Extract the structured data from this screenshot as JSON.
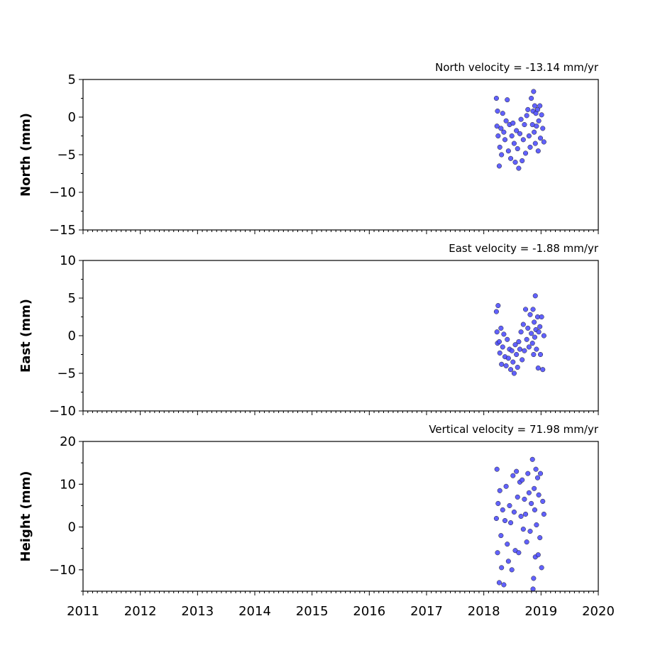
{
  "chart_data": [
    {
      "type": "scatter",
      "annotation": "North velocity = -13.14 mm/yr",
      "y_label": "North (mm)",
      "color": "#5050ff",
      "xlim": [
        2011,
        2020
      ],
      "xticks": [
        2011,
        2012,
        2013,
        2014,
        2015,
        2016,
        2017,
        2018,
        2019,
        2020
      ],
      "ylim": [
        -15,
        5
      ],
      "yticks": [
        {
          "value": -15,
          "label": "−15"
        },
        {
          "value": -10,
          "label": "−10"
        },
        {
          "value": -5,
          "label": "−5"
        },
        0,
        5
      ],
      "x": [
        2018.22,
        2018.23,
        2018.24,
        2018.25,
        2018.27,
        2018.28,
        2018.3,
        2018.31,
        2018.33,
        2018.35,
        2018.37,
        2018.39,
        2018.41,
        2018.43,
        2018.45,
        2018.47,
        2018.49,
        2018.51,
        2018.53,
        2018.55,
        2018.57,
        2018.59,
        2018.61,
        2018.63,
        2018.65,
        2018.67,
        2018.69,
        2018.71,
        2018.73,
        2018.75,
        2018.77,
        2018.79,
        2018.81,
        2018.83,
        2018.85,
        2018.86,
        2018.87,
        2018.88,
        2018.89,
        2018.9,
        2018.91,
        2018.92,
        2018.94,
        2018.95,
        2018.96,
        2018.98,
        2018.99,
        2019.01,
        2019.03,
        2019.05
      ],
      "values": [
        2.5,
        -1.2,
        0.8,
        -2.5,
        -6.5,
        -4.0,
        -1.5,
        -5.0,
        0.5,
        -2.0,
        -3.0,
        -0.5,
        2.3,
        -4.5,
        -1.0,
        -5.5,
        -2.5,
        -0.8,
        -3.5,
        -6.0,
        -1.8,
        -4.2,
        -6.8,
        -2.2,
        -0.3,
        -5.8,
        -3.0,
        -1.0,
        -4.8,
        0.2,
        1.0,
        -2.5,
        -4.0,
        2.5,
        -1.0,
        0.8,
        3.4,
        -2.0,
        1.5,
        -3.5,
        0.5,
        -1.2,
        1.0,
        -4.5,
        -0.5,
        1.5,
        -2.8,
        0.3,
        -1.5,
        -3.3
      ]
    },
    {
      "type": "scatter",
      "annotation": "East velocity = -1.88 mm/yr",
      "y_label": "East (mm)",
      "color": "#5050ff",
      "xlim": [
        2011,
        2020
      ],
      "xticks": [
        2011,
        2012,
        2013,
        2014,
        2015,
        2016,
        2017,
        2018,
        2019,
        2020
      ],
      "ylim": [
        -10,
        10
      ],
      "yticks": [
        {
          "value": -10,
          "label": "−10"
        },
        {
          "value": -5,
          "label": "−5"
        },
        0,
        5,
        10
      ],
      "x": [
        2018.22,
        2018.23,
        2018.24,
        2018.25,
        2018.27,
        2018.28,
        2018.3,
        2018.31,
        2018.33,
        2018.35,
        2018.37,
        2018.39,
        2018.41,
        2018.43,
        2018.45,
        2018.47,
        2018.49,
        2018.51,
        2018.53,
        2018.55,
        2018.57,
        2018.59,
        2018.61,
        2018.63,
        2018.65,
        2018.67,
        2018.69,
        2018.71,
        2018.73,
        2018.75,
        2018.77,
        2018.79,
        2018.81,
        2018.83,
        2018.85,
        2018.86,
        2018.87,
        2018.88,
        2018.89,
        2018.9,
        2018.91,
        2018.92,
        2018.94,
        2018.95,
        2018.96,
        2018.98,
        2018.99,
        2019.01,
        2019.03,
        2019.05
      ],
      "values": [
        3.2,
        0.5,
        -1.0,
        4.0,
        -0.8,
        -2.3,
        1.0,
        -3.8,
        -1.5,
        0.2,
        -2.8,
        -4.0,
        -0.5,
        -3.0,
        -1.8,
        -4.5,
        -2.0,
        -3.5,
        -5.0,
        -1.2,
        -2.5,
        -4.2,
        -0.8,
        -1.8,
        0.5,
        -3.2,
        1.5,
        -2.0,
        3.5,
        -0.5,
        1.0,
        -1.5,
        2.8,
        0.3,
        -1.0,
        3.5,
        -2.5,
        1.8,
        -0.2,
        5.3,
        0.8,
        -1.8,
        2.5,
        -4.3,
        0.5,
        1.2,
        -2.5,
        2.5,
        -4.5,
        0.0
      ]
    },
    {
      "type": "scatter",
      "annotation": "Vertical velocity = 71.98 mm/yr",
      "y_label": "Height (mm)",
      "color": "#5050ff",
      "xlim": [
        2011,
        2020
      ],
      "xticks": [
        2011,
        2012,
        2013,
        2014,
        2015,
        2016,
        2017,
        2018,
        2019,
        2020
      ],
      "x_tick_labels": true,
      "ylim": [
        -15,
        20
      ],
      "yticks": [
        {
          "value": -10,
          "label": "−10"
        },
        0,
        10,
        20
      ],
      "x": [
        2018.22,
        2018.23,
        2018.24,
        2018.25,
        2018.27,
        2018.28,
        2018.3,
        2018.31,
        2018.33,
        2018.35,
        2018.37,
        2018.39,
        2018.41,
        2018.43,
        2018.45,
        2018.47,
        2018.49,
        2018.51,
        2018.53,
        2018.55,
        2018.57,
        2018.59,
        2018.61,
        2018.63,
        2018.65,
        2018.67,
        2018.69,
        2018.71,
        2018.73,
        2018.75,
        2018.77,
        2018.79,
        2018.81,
        2018.83,
        2018.85,
        2018.86,
        2018.87,
        2018.88,
        2018.89,
        2018.9,
        2018.91,
        2018.92,
        2018.94,
        2018.95,
        2018.96,
        2018.98,
        2018.99,
        2019.01,
        2019.03,
        2019.05
      ],
      "values": [
        2.0,
        13.5,
        -6.0,
        5.5,
        -13.0,
        8.5,
        -2.0,
        -9.5,
        4.0,
        -13.5,
        1.5,
        9.5,
        -4.0,
        -8.0,
        5.0,
        1.0,
        -10.0,
        12.0,
        3.5,
        -5.5,
        13.0,
        7.0,
        -6.0,
        10.5,
        2.5,
        11.0,
        -0.5,
        6.5,
        3.0,
        -3.5,
        12.5,
        8.0,
        -1.0,
        5.5,
        15.8,
        -14.5,
        -12.0,
        9.0,
        4.0,
        -7.0,
        13.5,
        0.5,
        11.5,
        -6.5,
        7.5,
        -2.5,
        12.5,
        -9.5,
        6.0,
        3.0
      ]
    }
  ]
}
